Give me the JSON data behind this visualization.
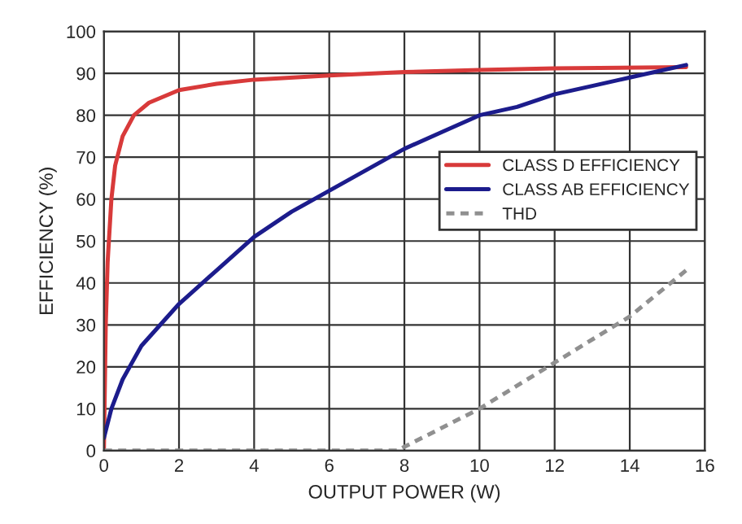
{
  "chart_data": {
    "type": "line",
    "xlabel": "OUTPUT POWER (W)",
    "ylabel": "EFFICIENCY (%)",
    "xlim": [
      0,
      16
    ],
    "ylim": [
      0,
      100
    ],
    "xticks": [
      0,
      2,
      4,
      6,
      8,
      10,
      12,
      14,
      16
    ],
    "yticks": [
      0,
      10,
      20,
      30,
      40,
      50,
      60,
      70,
      80,
      90,
      100
    ],
    "grid": true,
    "legend": "right",
    "marker": "none",
    "series": [
      {
        "name": "CLASS D EFFICIENCY",
        "color": "#d83a3a",
        "x": [
          0,
          0.05,
          0.1,
          0.2,
          0.3,
          0.5,
          0.8,
          1.2,
          2,
          3,
          4,
          6,
          8,
          10,
          12,
          15.5
        ],
        "values": [
          0,
          30,
          45,
          60,
          68,
          75,
          80,
          83,
          86,
          87.5,
          88.5,
          89.5,
          90.3,
          90.8,
          91.2,
          91.5
        ]
      },
      {
        "name": "CLASS AB EFFICIENCY",
        "color": "#1c1c8c",
        "x": [
          0,
          0.2,
          0.5,
          1,
          1.5,
          2,
          3,
          4,
          5,
          6,
          7,
          8,
          9,
          10,
          11,
          12,
          13,
          14,
          15.5
        ],
        "values": [
          3,
          10,
          17,
          25,
          30,
          35,
          43,
          51,
          57,
          62,
          67,
          72,
          76,
          80,
          82,
          85,
          87,
          89,
          92
        ]
      },
      {
        "name": "THD",
        "color": "#909090",
        "line_style": "dashed",
        "x": [
          0,
          7.8,
          10,
          12,
          14,
          15.5
        ],
        "values": [
          0,
          0,
          10,
          21,
          32,
          43
        ]
      }
    ]
  }
}
